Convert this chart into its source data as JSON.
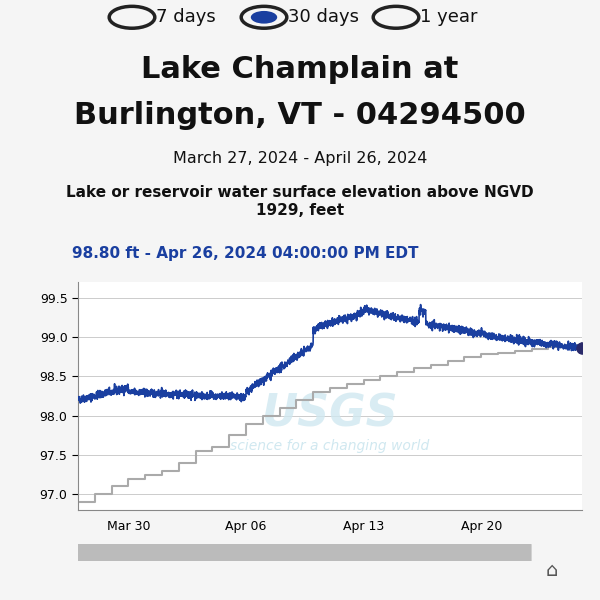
{
  "title_line1": "Lake Champlain at",
  "title_line2": "Burlington, VT - 04294500",
  "date_range": "March 27, 2024 - April 26, 2024",
  "ylabel": "Lake or reservoir water surface elevation above NGVD\n1929, feet",
  "latest_reading": "98.80 ft - Apr 26, 2024 04:00:00 PM EDT",
  "radio_labels": [
    "7 days",
    "30 days",
    "1 year"
  ],
  "radio_selected": 1,
  "radio_color_selected": "#1a3fa0",
  "ylim": [
    96.8,
    99.7
  ],
  "yticks": [
    97.0,
    97.5,
    98.0,
    98.5,
    99.0,
    99.5
  ],
  "xtick_labels": [
    "Mar 30",
    "Apr 06",
    "Apr 13",
    "Apr 20"
  ],
  "bg_color": "#f5f5f5",
  "plot_bg": "#ffffff",
  "blue_line_color": "#1a3fa0",
  "gray_step_color": "#aaaaaa",
  "usgs_watermark_color": "#d0e8f0",
  "light_blue_bar": "#b8dff0",
  "endpoint_dot_color": "#2a2a6a",
  "latest_reading_color": "#1a3fa0"
}
